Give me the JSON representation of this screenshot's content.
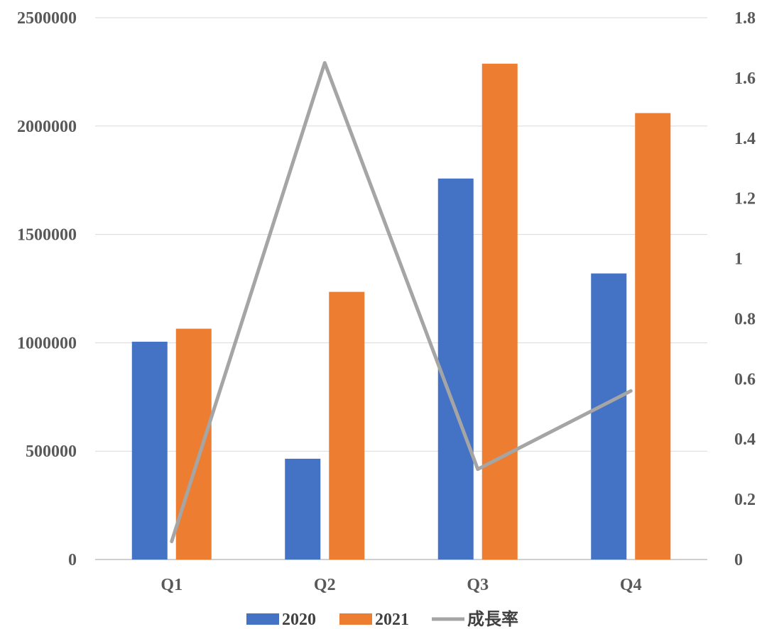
{
  "chart_data": {
    "type": "bar",
    "categories": [
      "Q1",
      "Q2",
      "Q3",
      "Q4"
    ],
    "series": [
      {
        "name": "2020",
        "type": "bar",
        "axis": "left",
        "color": "#4472C4",
        "values": [
          1005000,
          465000,
          1758000,
          1320000
        ]
      },
      {
        "name": "2021",
        "type": "bar",
        "axis": "left",
        "color": "#ED7D31",
        "values": [
          1065000,
          1235000,
          2288000,
          2060000
        ]
      },
      {
        "name": "成長率",
        "type": "line",
        "axis": "right",
        "color": "#A5A5A5",
        "values": [
          0.06,
          1.65,
          0.3,
          0.56
        ]
      }
    ],
    "y_left": {
      "min": 0,
      "max": 2500000,
      "ticks": [
        "0",
        "500000",
        "1000000",
        "1500000",
        "2000000",
        "2500000"
      ]
    },
    "y_right": {
      "min": 0,
      "max": 1.8,
      "ticks": [
        "0",
        "0.2",
        "0.4",
        "0.6",
        "0.8",
        "1",
        "1.2",
        "1.4",
        "1.6",
        "1.8"
      ]
    },
    "grid": true,
    "legend": "bottom-center",
    "title": "",
    "xlabel": "",
    "ylabel": ""
  }
}
